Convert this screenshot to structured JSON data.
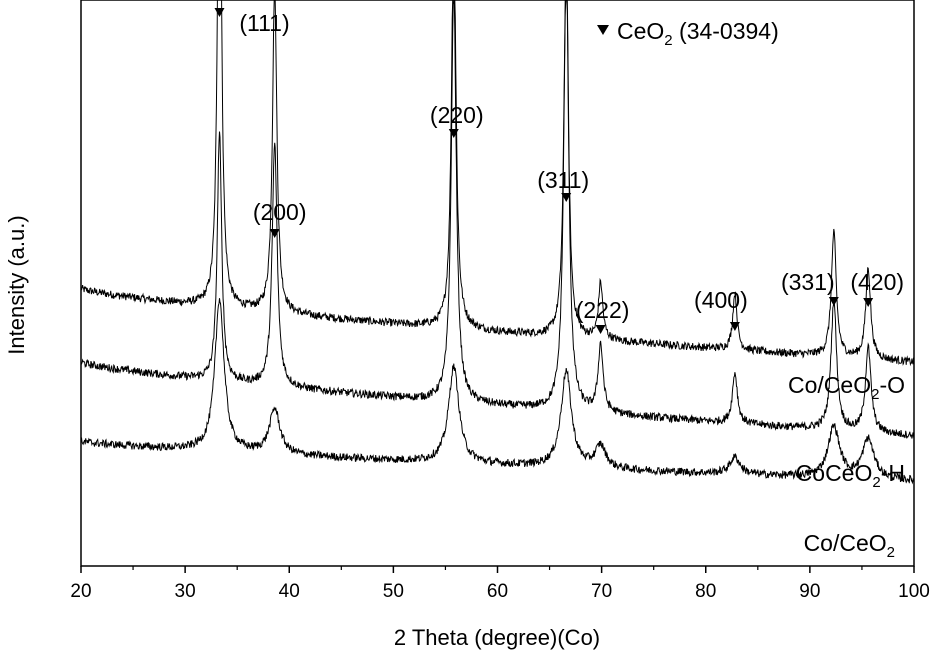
{
  "chart_data": {
    "type": "line",
    "xlabel": "2 Theta (degree)(Co)",
    "ylabel": "Intensity (a.u.)",
    "xlim": [
      20,
      100
    ],
    "x_ticks": [
      "20",
      "30",
      "40",
      "50",
      "60",
      "70",
      "80",
      "90",
      "100"
    ],
    "y_ticks": "none (arbitrary units)",
    "grid": false,
    "legend": {
      "marker": "down-triangle",
      "label": "CeO2 (34-0394)",
      "placement": "top-right"
    },
    "peaks": [
      {
        "hkl": "(111)",
        "two_theta": 33.3
      },
      {
        "hkl": "(200)",
        "two_theta": 38.6
      },
      {
        "hkl": "(220)",
        "two_theta": 55.8
      },
      {
        "hkl": "(311)",
        "two_theta": 66.6
      },
      {
        "hkl": "(222)",
        "two_theta": 69.9
      },
      {
        "hkl": "(400)",
        "two_theta": 82.8
      },
      {
        "hkl": "(331)",
        "two_theta": 92.3
      },
      {
        "hkl": "(420)",
        "two_theta": 95.6
      }
    ],
    "series": [
      {
        "name": "Co/CeO2-O",
        "baseline_start": 0.49,
        "baseline_end": 0.36,
        "peak_heights": [
          1.0,
          0.58,
          0.75,
          0.71,
          0.1,
          0.1,
          0.22,
          0.16
        ]
      },
      {
        "name": "CoCeO2-H",
        "baseline_start": 0.36,
        "baseline_end": 0.23,
        "peak_heights": [
          0.44,
          0.43,
          0.73,
          0.79,
          0.12,
          0.09,
          0.23,
          0.15
        ]
      },
      {
        "name": "Co/CeO2",
        "baseline_start": 0.22,
        "baseline_end": 0.15,
        "peak_heights": [
          0.27,
          0.08,
          0.17,
          0.17,
          0.04,
          0.03,
          0.09,
          0.07
        ]
      }
    ]
  }
}
